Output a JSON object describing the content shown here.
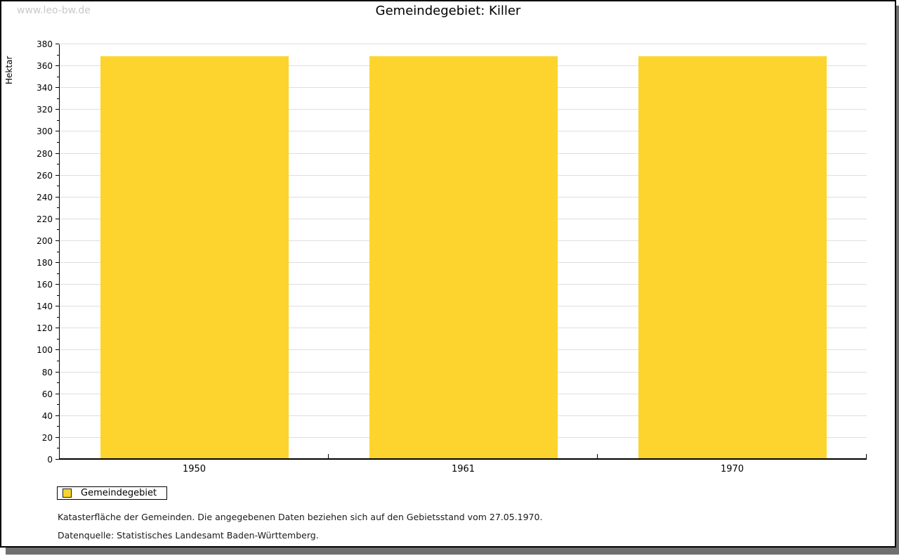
{
  "watermark": "www.leo-bw.de",
  "title": "Gemeindegebiet: Killer",
  "chart_data": {
    "type": "bar",
    "title": "Gemeindegebiet: Killer",
    "categories": [
      "1950",
      "1961",
      "1970"
    ],
    "series": [
      {
        "name": "Gemeindegebiet",
        "values": [
          368,
          368,
          368
        ]
      }
    ],
    "xlabel": "",
    "ylabel": "Hektar",
    "ylim": [
      0,
      380
    ],
    "y_major_step": 20,
    "y_minor_step": 10,
    "grid": true,
    "bar_color": "#FCD42D",
    "gridline_color": "#dedede",
    "legend_position": "bottom-left"
  },
  "legend": {
    "label": "Gemeindegebiet",
    "swatch_color": "#FCD42D"
  },
  "footer": {
    "line1": "Katasterfläche der Gemeinden. Die angegebenen Daten beziehen sich auf den Gebietsstand vom 27.05.1970.",
    "line2": "Datenquelle: Statistisches Landesamt Baden-Württemberg."
  }
}
